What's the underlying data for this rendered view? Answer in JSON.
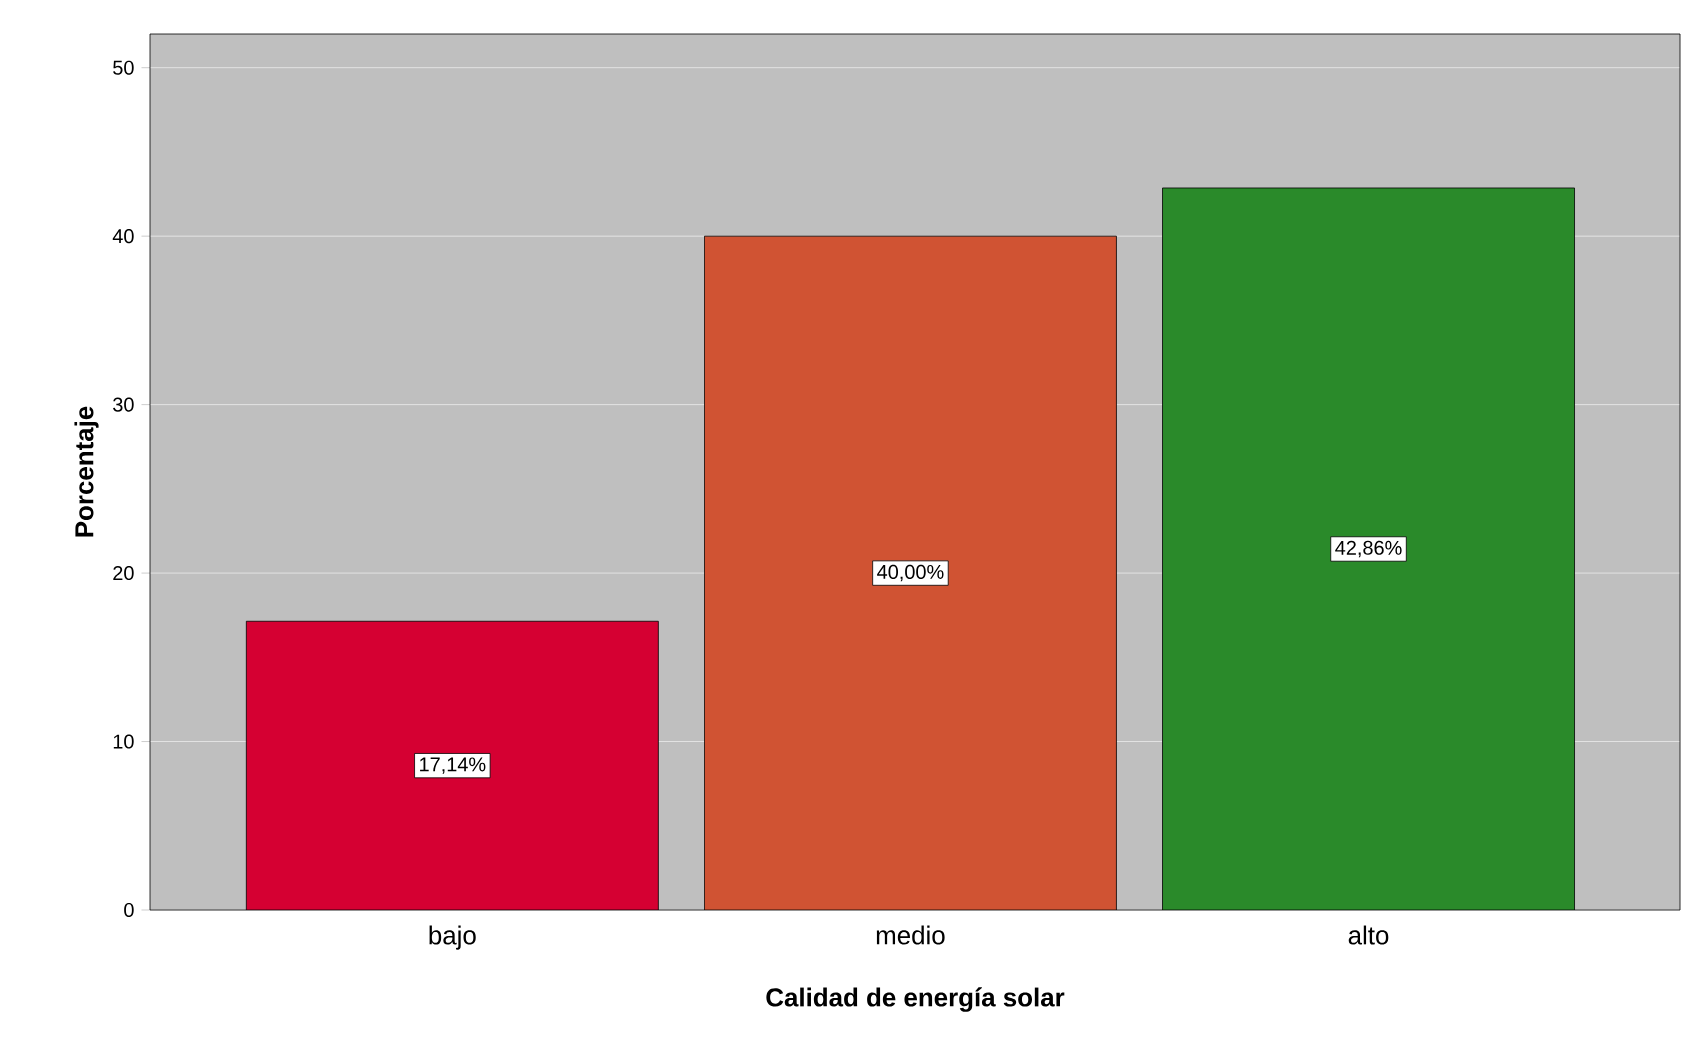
{
  "chart_data": {
    "type": "bar",
    "xlabel": "Calidad de energía solar",
    "ylabel": "Porcentaje",
    "categories": [
      "bajo",
      "medio",
      "alto"
    ],
    "values": [
      17.14,
      40.0,
      42.86
    ],
    "colors": [
      "#d50032",
      "#d05333",
      "#2a8a2a"
    ],
    "value_labels": [
      "17,14%",
      "40,00%",
      "42,86%"
    ],
    "ylim": [
      0,
      52
    ],
    "yticks": [
      0,
      10,
      20,
      30,
      40,
      50
    ],
    "grid": "y"
  }
}
